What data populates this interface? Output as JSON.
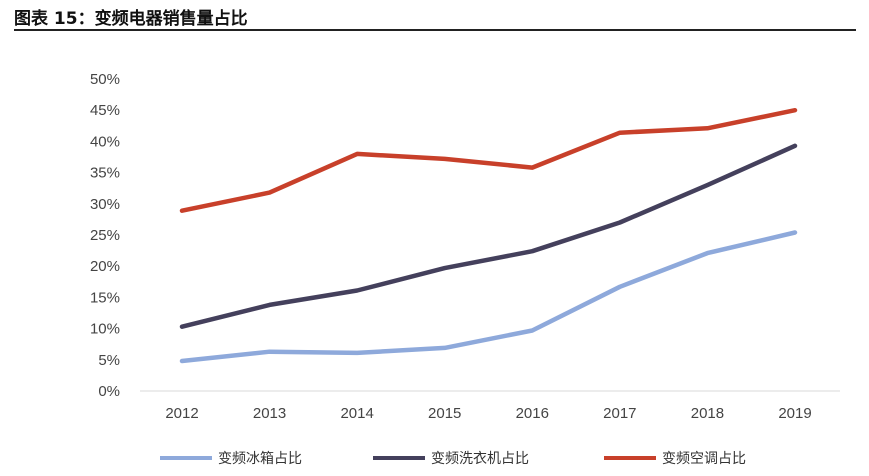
{
  "figure_title": "图表 15：变频电器销售量占比",
  "chart_data": {
    "type": "line",
    "categories": [
      "2012",
      "2013",
      "2014",
      "2015",
      "2016",
      "2017",
      "2018",
      "2019"
    ],
    "y_ticks": [
      "0%",
      "5%",
      "10%",
      "15%",
      "20%",
      "25%",
      "30%",
      "35%",
      "40%",
      "45%",
      "50%"
    ],
    "ylim": [
      0,
      50
    ],
    "grid": false,
    "legend_position": "bottom",
    "series": [
      {
        "name": "变频冰箱占比",
        "color": "#8ea9db",
        "values": [
          4.8,
          6.3,
          6.1,
          6.9,
          9.7,
          16.7,
          22.1,
          25.4
        ]
      },
      {
        "name": "变频洗衣机占比",
        "color": "#44405c",
        "values": [
          10.3,
          13.8,
          16.1,
          19.7,
          22.4,
          27.0,
          33.0,
          39.3
        ]
      },
      {
        "name": "变频空调占比",
        "color": "#c8402a",
        "values": [
          28.9,
          31.8,
          38.0,
          37.2,
          35.8,
          41.4,
          42.1,
          45.0
        ]
      }
    ]
  }
}
